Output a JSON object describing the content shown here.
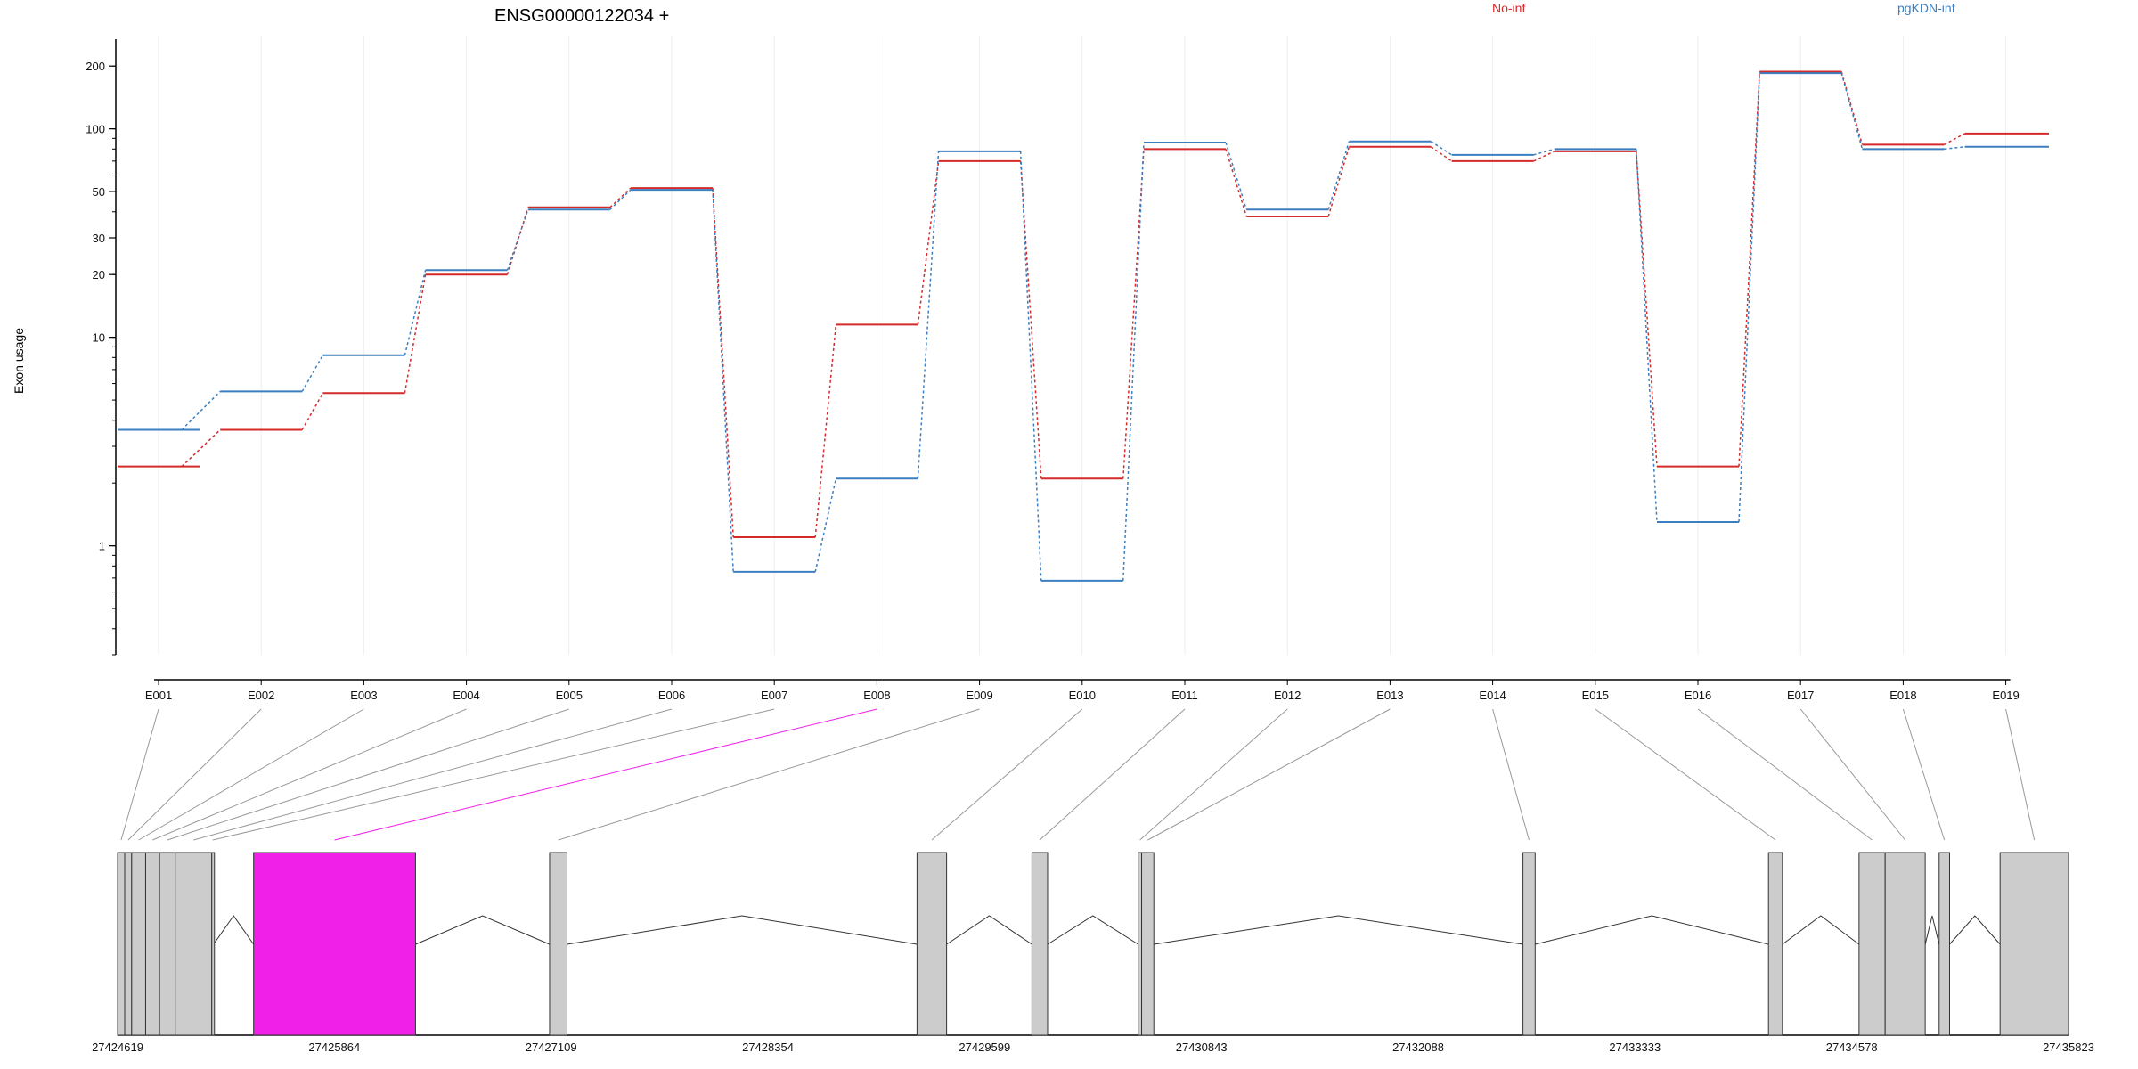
{
  "chart_data": {
    "type": "line",
    "title": "ENSG00000122034 +",
    "ylabel": "Exon usage",
    "xlabel": "",
    "y_scale": "log",
    "ylim": [
      0.3,
      280
    ],
    "y_ticks": [
      1,
      10,
      20,
      30,
      50,
      100,
      200
    ],
    "grid": "vertical",
    "legend_placement": "top",
    "categories": [
      "E001",
      "E002",
      "E003",
      "E004",
      "E005",
      "E006",
      "E007",
      "E008",
      "E009",
      "E010",
      "E011",
      "E012",
      "E013",
      "E014",
      "E015",
      "E016",
      "E017",
      "E018",
      "E019"
    ],
    "series": [
      {
        "name": "No-inf",
        "color": "#d42a2a",
        "values": [
          2.4,
          3.6,
          5.4,
          20,
          42,
          52,
          1.1,
          11.5,
          70,
          2.1,
          80,
          38,
          82,
          70,
          78,
          2.4,
          188,
          84,
          95
        ]
      },
      {
        "name": "pgKDN-inf",
        "color": "#3c7fc0",
        "values": [
          3.6,
          5.5,
          8.2,
          21,
          41,
          51,
          0.75,
          2.1,
          78,
          0.68,
          86,
          41,
          87,
          75,
          80,
          1.3,
          185,
          80,
          82
        ]
      }
    ],
    "gene_model": {
      "coordinate_labels": [
        "27424619",
        "27425864",
        "27427109",
        "27428354",
        "27429599",
        "27430843",
        "27432088",
        "27433333",
        "27434578",
        "27435823"
      ],
      "coord_min": 27424619,
      "coord_max": 27435823,
      "highlight_exon": "E008",
      "highlight_color": "#f020e8",
      "exon_color": "#cccccc",
      "exons": [
        {
          "id": "E001",
          "start": 27424619,
          "end": 27424660
        },
        {
          "id": "E002",
          "start": 27424660,
          "end": 27424700
        },
        {
          "id": "E003",
          "start": 27424700,
          "end": 27424780
        },
        {
          "id": "E004",
          "start": 27424780,
          "end": 27424860
        },
        {
          "id": "E005",
          "start": 27424860,
          "end": 27424950
        },
        {
          "id": "E006",
          "start": 27424950,
          "end": 27425160
        },
        {
          "id": "E007",
          "start": 27425160,
          "end": 27425160
        },
        {
          "id": "E008",
          "start": 27425400,
          "end": 27426330
        },
        {
          "id": "E009",
          "start": 27427100,
          "end": 27427200
        },
        {
          "id": "E010",
          "start": 27429210,
          "end": 27429380
        },
        {
          "id": "E011",
          "start": 27429870,
          "end": 27429960
        },
        {
          "id": "E012",
          "start": 27430480,
          "end": 27430500
        },
        {
          "id": "E013",
          "start": 27430500,
          "end": 27430570
        },
        {
          "id": "E014",
          "start": 27432690,
          "end": 27432760
        },
        {
          "id": "E015",
          "start": 27434100,
          "end": 27434180
        },
        {
          "id": "E016",
          "start": 27434620,
          "end": 27434770
        },
        {
          "id": "E017",
          "start": 27434770,
          "end": 27435000
        },
        {
          "id": "E018",
          "start": 27435080,
          "end": 27435140
        },
        {
          "id": "E019",
          "start": 27435430,
          "end": 27435823
        }
      ]
    }
  }
}
